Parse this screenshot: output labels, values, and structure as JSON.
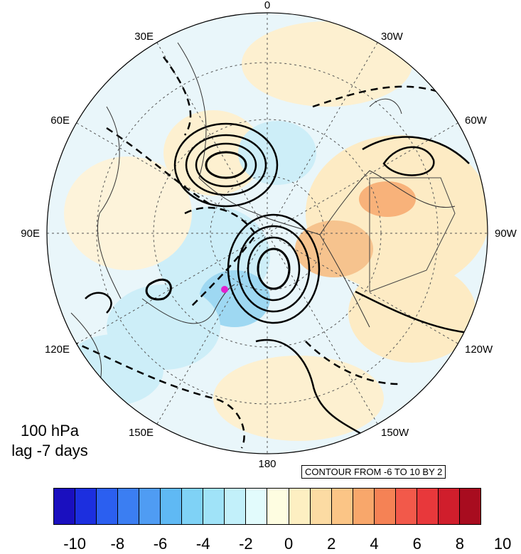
{
  "map": {
    "projection": "north-polar-stereographic",
    "longitude_labels": [
      "0",
      "30W",
      "60W",
      "90W",
      "120W",
      "150W",
      "180",
      "150E",
      "120E",
      "90E",
      "60E",
      "30E"
    ],
    "colors": {
      "ocean_neutral": "#e9f6fa",
      "positive_light": "#fdebc4",
      "positive_mid": "#f6c38e",
      "negative_light": "#cdeef8",
      "negative_mid": "#9ed8f2",
      "contour": "#000000",
      "marker": "#e020d0"
    }
  },
  "title": {
    "line1": "100 hPa",
    "line2": "lag -7 days"
  },
  "contour_note": "CONTOUR FROM -6 TO 10 BY 2",
  "colorbar": {
    "colors": [
      "#1a0fbf",
      "#1c2fdf",
      "#2b5ff0",
      "#3b7ef2",
      "#4f9cf3",
      "#5fb9f4",
      "#7fd2f6",
      "#a0e3f8",
      "#c2f0fa",
      "#e2fbfc",
      "#fefde1",
      "#fdefc2",
      "#fcdba3",
      "#fbc586",
      "#f8a76b",
      "#f58255",
      "#f2594a",
      "#e8383b",
      "#d01e2c",
      "#a80c1f"
    ],
    "labels": [
      "-10",
      "-8",
      "-6",
      "-4",
      "-2",
      "0",
      "2",
      "4",
      "6",
      "8",
      "10"
    ]
  }
}
